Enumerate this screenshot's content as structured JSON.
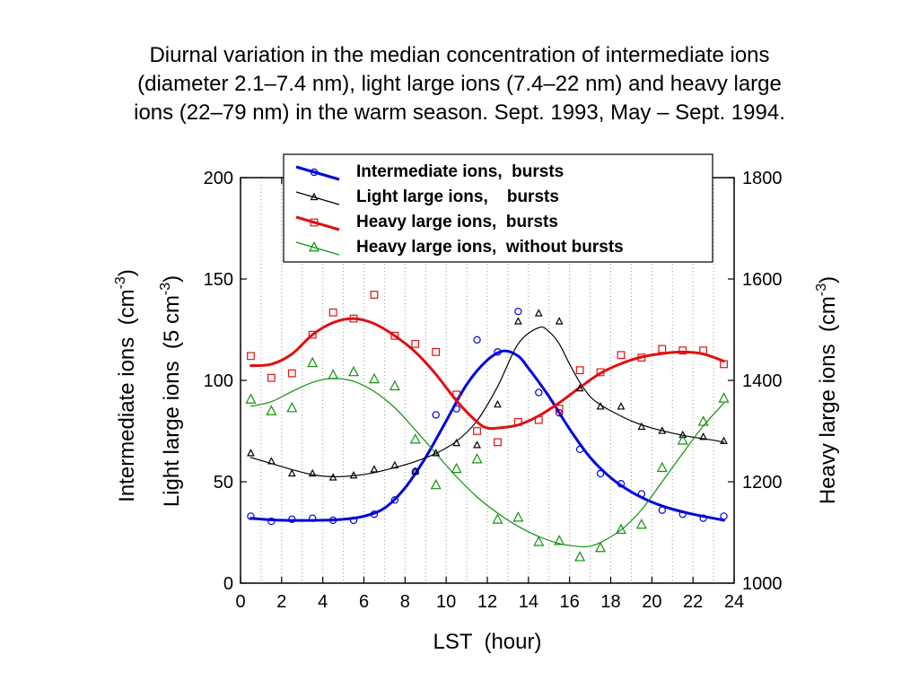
{
  "title_lines": [
    "Diurnal variation in the median concentration of intermediate ions",
    "(diameter 2.1–7.4 nm), light large ions (7.4–22 nm) and heavy large",
    "ions (22–79 nm) in the warm season. Sept. 1993, May – Sept.  1994."
  ],
  "chart_data": {
    "type": "line",
    "xlabel": "LST  (hour)",
    "ylabel_left_1": "Intermediate ions  (cm",
    "ylabel_left_2": "Light large ions  (5 cm",
    "ylabel_right": "Heavy large ions  (cm",
    "ylabel_sup": "-3",
    "ylabel_close": ")",
    "xlim": [
      0,
      24
    ],
    "ylim_left": [
      0,
      200
    ],
    "ylim_right": [
      1000,
      1800
    ],
    "xticks": [
      "0",
      "2",
      "4",
      "6",
      "8",
      "10",
      "12",
      "14",
      "16",
      "18",
      "20",
      "22",
      "24"
    ],
    "yticks_left": [
      "0",
      "50",
      "100",
      "150",
      "200"
    ],
    "yticks_right": [
      "1000",
      "1200",
      "1400",
      "1600",
      "1800"
    ],
    "grid": "vertical dotted every hour",
    "legend_position": "top",
    "colors": {
      "blue": "#0000dd",
      "black": "#000000",
      "red": "#e01010",
      "green": "#109010"
    },
    "series": [
      {
        "name": "Intermediate ions,  bursts",
        "axis": "left",
        "color": "#0000dd",
        "marker": "circle",
        "line_width": 3,
        "points": [
          [
            0.5,
            33
          ],
          [
            1.5,
            30.5
          ],
          [
            2.5,
            31.5
          ],
          [
            3.5,
            32
          ],
          [
            4.5,
            31
          ],
          [
            5.5,
            31
          ],
          [
            6.5,
            34
          ],
          [
            7.5,
            41
          ],
          [
            8.5,
            55
          ],
          [
            9.5,
            83
          ],
          [
            10.5,
            86
          ],
          [
            11.5,
            120
          ],
          [
            12.5,
            114
          ],
          [
            13.5,
            134
          ],
          [
            14.5,
            94
          ],
          [
            15.5,
            84
          ],
          [
            16.5,
            66
          ],
          [
            17.5,
            54
          ],
          [
            18.5,
            49
          ],
          [
            19.5,
            44
          ],
          [
            20.5,
            36
          ],
          [
            21.5,
            34
          ],
          [
            22.5,
            32
          ],
          [
            23.5,
            33
          ]
        ],
        "curve": [
          [
            0.5,
            32
          ],
          [
            2,
            31
          ],
          [
            4,
            31
          ],
          [
            5,
            31.5
          ],
          [
            6,
            33
          ],
          [
            7,
            37
          ],
          [
            8,
            47
          ],
          [
            9,
            62
          ],
          [
            10,
            80
          ],
          [
            11,
            98
          ],
          [
            12,
            110
          ],
          [
            12.8,
            114.5
          ],
          [
            13.5,
            112
          ],
          [
            14,
            106
          ],
          [
            15,
            92
          ],
          [
            16,
            76
          ],
          [
            17,
            62
          ],
          [
            18,
            52
          ],
          [
            19,
            45
          ],
          [
            20,
            40
          ],
          [
            21,
            36.5
          ],
          [
            22,
            34
          ],
          [
            23,
            32
          ],
          [
            23.5,
            31
          ]
        ]
      },
      {
        "name": "Light large ions,    bursts",
        "axis": "left",
        "color": "#000000",
        "marker": "triangle",
        "line_width": 1.2,
        "points": [
          [
            0.5,
            64
          ],
          [
            1.5,
            60
          ],
          [
            2.5,
            54
          ],
          [
            3.5,
            54
          ],
          [
            4.5,
            52
          ],
          [
            5.5,
            53
          ],
          [
            6.5,
            56
          ],
          [
            7.5,
            58
          ],
          [
            8.5,
            55
          ],
          [
            9.5,
            64
          ],
          [
            10.5,
            69
          ],
          [
            11.5,
            68
          ],
          [
            12.5,
            88
          ],
          [
            13.5,
            129
          ],
          [
            14.5,
            133
          ],
          [
            15.5,
            129
          ],
          [
            16.5,
            96
          ],
          [
            17.5,
            87
          ],
          [
            18.5,
            87
          ],
          [
            19.5,
            77
          ],
          [
            20.5,
            75
          ],
          [
            21.5,
            73
          ],
          [
            22.5,
            72
          ],
          [
            23.5,
            70
          ]
        ],
        "curve": [
          [
            0.5,
            62
          ],
          [
            1.5,
            59
          ],
          [
            2.5,
            56
          ],
          [
            3.5,
            53.5
          ],
          [
            4.5,
            52.5
          ],
          [
            5.5,
            53
          ],
          [
            6.5,
            54.5
          ],
          [
            7.5,
            57
          ],
          [
            8.5,
            60
          ],
          [
            9.5,
            64
          ],
          [
            10.5,
            70
          ],
          [
            11.5,
            80
          ],
          [
            12.5,
            97
          ],
          [
            13.5,
            118
          ],
          [
            14.5,
            126
          ],
          [
            15,
            124
          ],
          [
            15.5,
            118
          ],
          [
            16,
            108
          ],
          [
            16.5,
            99
          ],
          [
            17,
            92
          ],
          [
            17.5,
            88
          ],
          [
            18,
            85
          ],
          [
            19,
            80
          ],
          [
            20,
            76.5
          ],
          [
            21,
            74
          ],
          [
            22,
            72
          ],
          [
            23,
            70.5
          ],
          [
            23.5,
            69.5
          ]
        ]
      },
      {
        "name": "Heavy large ions,  bursts",
        "axis": "right",
        "color": "#e01010",
        "marker": "square",
        "line_width": 3,
        "points": [
          [
            0.5,
            1448
          ],
          [
            1.5,
            1405
          ],
          [
            2.5,
            1414
          ],
          [
            3.5,
            1490
          ],
          [
            4.5,
            1534
          ],
          [
            5.5,
            1522
          ],
          [
            6.5,
            1569
          ],
          [
            7.5,
            1488
          ],
          [
            8.5,
            1472
          ],
          [
            9.5,
            1456
          ],
          [
            10.5,
            1372
          ],
          [
            11.5,
            1300
          ],
          [
            12.5,
            1278
          ],
          [
            13.5,
            1318
          ],
          [
            14.5,
            1322
          ],
          [
            15.5,
            1344
          ],
          [
            16.5,
            1420
          ],
          [
            17.5,
            1416
          ],
          [
            18.5,
            1450
          ],
          [
            19.5,
            1445
          ],
          [
            20.5,
            1462
          ],
          [
            21.5,
            1459
          ],
          [
            22.5,
            1459
          ],
          [
            23.5,
            1432
          ]
        ],
        "curve": [
          [
            0.5,
            1429
          ],
          [
            1.5,
            1432
          ],
          [
            2.5,
            1452
          ],
          [
            3.5,
            1490
          ],
          [
            4.5,
            1514
          ],
          [
            5.5,
            1522
          ],
          [
            6.5,
            1512
          ],
          [
            7.5,
            1488
          ],
          [
            8.5,
            1456
          ],
          [
            9.5,
            1412
          ],
          [
            10.5,
            1360
          ],
          [
            11.5,
            1318
          ],
          [
            12,
            1306
          ],
          [
            12.5,
            1306
          ],
          [
            13.5,
            1312
          ],
          [
            14.5,
            1330
          ],
          [
            15.5,
            1356
          ],
          [
            16.5,
            1386
          ],
          [
            17.5,
            1414
          ],
          [
            18.5,
            1433
          ],
          [
            19.5,
            1446
          ],
          [
            20.5,
            1453
          ],
          [
            21.5,
            1456
          ],
          [
            22.5,
            1452
          ],
          [
            23.5,
            1438
          ]
        ]
      },
      {
        "name": "Heavy large ions,  without bursts",
        "axis": "right",
        "color": "#109010",
        "marker": "triangle",
        "line_width": 1.2,
        "points": [
          [
            0.5,
            1362
          ],
          [
            1.5,
            1339
          ],
          [
            2.5,
            1345
          ],
          [
            3.5,
            1434
          ],
          [
            4.5,
            1410
          ],
          [
            5.5,
            1416
          ],
          [
            6.5,
            1402
          ],
          [
            7.5,
            1388
          ],
          [
            8.5,
            1283
          ],
          [
            9.5,
            1193
          ],
          [
            10.5,
            1225
          ],
          [
            11.5,
            1244
          ],
          [
            12.5,
            1125
          ],
          [
            13.5,
            1129
          ],
          [
            14.5,
            1081
          ],
          [
            15.5,
            1083
          ],
          [
            16.5,
            1051
          ],
          [
            17.5,
            1069
          ],
          [
            18.5,
            1105
          ],
          [
            19.5,
            1115
          ],
          [
            20.5,
            1227
          ],
          [
            21.5,
            1281
          ],
          [
            22.5,
            1318
          ],
          [
            23.5,
            1364
          ]
        ],
        "curve": [
          [
            0.5,
            1349
          ],
          [
            1.5,
            1358
          ],
          [
            2.5,
            1378
          ],
          [
            3.5,
            1396
          ],
          [
            4.5,
            1404
          ],
          [
            5.5,
            1398
          ],
          [
            6.5,
            1378
          ],
          [
            7.5,
            1346
          ],
          [
            8.5,
            1302
          ],
          [
            9.5,
            1256
          ],
          [
            10.5,
            1210
          ],
          [
            11.5,
            1170
          ],
          [
            12.5,
            1138
          ],
          [
            13.5,
            1112
          ],
          [
            14.5,
            1092
          ],
          [
            15.5,
            1078
          ],
          [
            16.5,
            1072
          ],
          [
            17,
            1073
          ],
          [
            17.5,
            1080
          ],
          [
            18.5,
            1105
          ],
          [
            19.5,
            1145
          ],
          [
            20.5,
            1200
          ],
          [
            21.5,
            1256
          ],
          [
            22.5,
            1310
          ],
          [
            23.5,
            1355
          ]
        ]
      }
    ]
  }
}
